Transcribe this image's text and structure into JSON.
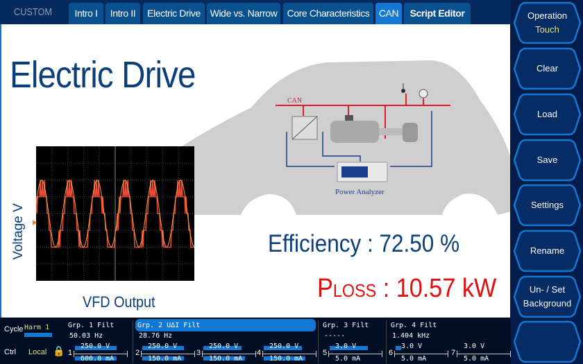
{
  "tabs": {
    "mode": "CUSTOM",
    "items": [
      {
        "label": "Intro I",
        "active": false
      },
      {
        "label": "Intro II",
        "active": false
      },
      {
        "label": "Electric Drive",
        "active": false
      },
      {
        "label": "Wide vs. Narrow",
        "active": false
      },
      {
        "label": "Core Characteristics",
        "active": false
      },
      {
        "label": "CAN",
        "active": true
      },
      {
        "label": "Script Editor",
        "active": false
      }
    ]
  },
  "main": {
    "title": "Electric Drive",
    "efficiency": "Efficiency : 72.50 %",
    "ploss_p": "P",
    "ploss_sub": "LOSS",
    "ploss_value": " : 10.57 kW",
    "y_label": "Voltage V",
    "scope_caption": "VFD Output",
    "diagram_can": "CAN",
    "diagram_analyzer": "Power Analyzer"
  },
  "sidebar": {
    "operation": "Operation",
    "operation_value": "Touch",
    "clear": "Clear",
    "load": "Load",
    "save": "Save",
    "settings": "Settings",
    "rename": "Rename",
    "background1": "Un- / Set",
    "background2": "Background"
  },
  "footer": {
    "cycle_label": "Cycle",
    "cycle_value": "Harm 1",
    "ctrl_label": "Ctrl",
    "ctrl_value": "Local",
    "groups": [
      {
        "label": "Grp. 1",
        "filt": "Filt",
        "freq": "50.03  Hz"
      },
      {
        "label": "Grp. 2",
        "extra": "U∆I",
        "filt": "Filt",
        "freq": "28.76  Hz"
      },
      {
        "label": "Grp. 3",
        "filt": "Filt",
        "freq": "-----"
      },
      {
        "label": "Grp. 4",
        "filt": "Filt",
        "freq": "1.404 kHz"
      }
    ],
    "elements": [
      {
        "n": "1",
        "v": "250.0 V",
        "i": "600.0 mA"
      },
      {
        "n": "2",
        "v": "250.0 V",
        "i": "150.0 mA"
      },
      {
        "n": "3",
        "v": "250.0 V",
        "i": "150.0 mA"
      },
      {
        "n": "4",
        "v": "250.0 V",
        "i": "150.0 mA"
      },
      {
        "n": "5",
        "v": "3.0 V",
        "i": "5.0 mA"
      },
      {
        "n": "6",
        "v": "3.0 V",
        "i": "5.0 mA"
      },
      {
        "n": "7",
        "v": "3.0 V",
        "i": "5.0 mA"
      }
    ]
  },
  "colors": {
    "accent": "#1478d2",
    "title": "#0c3e7a",
    "loss": "#e01010",
    "waveform": "#f04a3a"
  }
}
